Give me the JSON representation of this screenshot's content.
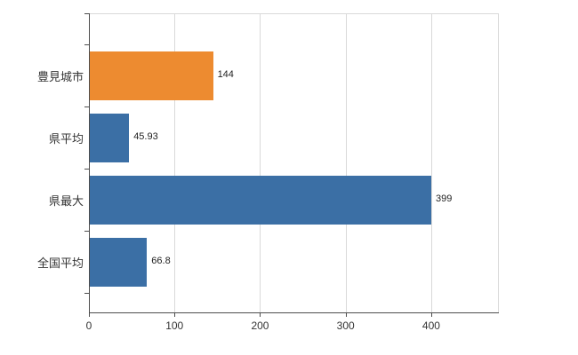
{
  "chart_data": {
    "type": "bar",
    "orientation": "horizontal",
    "title": "",
    "xlabel": "",
    "ylabel": "",
    "categories": [
      "豊見城市",
      "県平均",
      "県最大",
      "全国平均"
    ],
    "values": [
      144,
      45.93,
      399,
      66.8
    ],
    "value_labels": [
      "144",
      "45.93",
      "399",
      "66.8"
    ],
    "bar_colors": [
      "#ed8b30",
      "#3b6fa5",
      "#3b6fa5",
      "#3b6fa5"
    ],
    "xlim": [
      0,
      478
    ],
    "xticks": [
      0,
      100,
      200,
      300,
      400
    ],
    "grid": true,
    "legend": "none",
    "background": "#ffffff",
    "axis_color": "#4d4d4d",
    "grid_color": "#d9d9d9",
    "text_color": "#333333"
  }
}
